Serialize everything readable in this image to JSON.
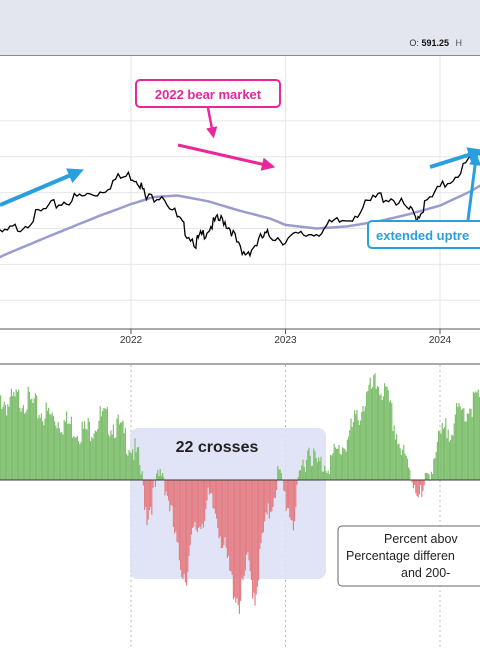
{
  "header": {
    "ohlc_prefix": "O:",
    "ohlc_open": "591.25",
    "ohlc_next": "H"
  },
  "annotations": {
    "bear_market": "2022 bear market",
    "extended_uptrend": "extended uptre",
    "crosses": "22 crosses",
    "note_lines": [
      "Percent abov",
      "Percentage differen",
      "and 200-"
    ]
  },
  "colors": {
    "price_line": "#000000",
    "moving_average": "#9a9cd0",
    "positive_histogram": "#7fbf6e",
    "negative_histogram": "#e47f86",
    "crosses_box": "#dcdff5",
    "bear_annotation": "#e8279b",
    "uptrend_annotation": "#2a9fe0"
  },
  "chart_data": [
    {
      "type": "line",
      "panel": "price",
      "x_ticks": [
        "2022",
        "2023",
        "2024"
      ],
      "x_range": [
        2020.9,
        2024.7
      ],
      "grid": true,
      "series": [
        {
          "role": "price",
          "x": [
            2020.9,
            2021.0,
            2021.1,
            2021.2,
            2021.3,
            2021.4,
            2021.5,
            2021.6,
            2021.7,
            2021.8,
            2021.9,
            2022.0,
            2022.05,
            2022.1,
            2022.2,
            2022.3,
            2022.35,
            2022.42,
            2022.45,
            2022.5,
            2022.55,
            2022.6,
            2022.65,
            2022.72,
            2022.78,
            2022.85,
            2022.9,
            2023.0,
            2023.1,
            2023.2,
            2023.3,
            2023.4,
            2023.5,
            2023.6,
            2023.7,
            2023.8,
            2023.85,
            2023.9,
            2024.0,
            2024.1,
            2024.2,
            2024.3,
            2024.4,
            2024.5,
            2024.6,
            2024.7
          ],
          "y": [
            362,
            370,
            385,
            395,
            405,
            420,
            432,
            440,
            445,
            452,
            468,
            474,
            468,
            440,
            450,
            415,
            398,
            380,
            388,
            400,
            410,
            412,
            398,
            362,
            372,
            387,
            392,
            384,
            390,
            395,
            405,
            413,
            428,
            445,
            442,
            425,
            415,
            432,
            455,
            475,
            495,
            512,
            520,
            535,
            550,
            560
          ]
        },
        {
          "role": "200-day moving average",
          "x": [
            2020.9,
            2021.2,
            2021.5,
            2021.8,
            2022.0,
            2022.15,
            2022.3,
            2022.5,
            2022.7,
            2022.9,
            2023.0,
            2023.2,
            2023.4,
            2023.6,
            2023.8,
            2024.0,
            2024.2,
            2024.4,
            2024.6,
            2024.7
          ],
          "y": [
            335,
            365,
            392,
            418,
            434,
            444,
            446,
            438,
            425,
            414,
            405,
            400,
            403,
            410,
            420,
            432,
            452,
            478,
            505,
            515
          ]
        }
      ]
    },
    {
      "type": "bar",
      "panel": "indicator",
      "baseline": 0,
      "ylim": [
        -12,
        8
      ],
      "x": [
        2020.9,
        2021.0,
        2021.1,
        2021.2,
        2021.3,
        2021.4,
        2021.5,
        2021.6,
        2021.7,
        2021.8,
        2021.9,
        2021.95,
        2022.0,
        2022.05,
        2022.08,
        2022.1,
        2022.15,
        2022.2,
        2022.25,
        2022.3,
        2022.35,
        2022.4,
        2022.45,
        2022.5,
        2022.55,
        2022.6,
        2022.65,
        2022.7,
        2022.75,
        2022.8,
        2022.85,
        2022.9,
        2022.95,
        2023.0,
        2023.05,
        2023.1,
        2023.15,
        2023.2,
        2023.3,
        2023.4,
        2023.5,
        2023.55,
        2023.6,
        2023.65,
        2023.7,
        2023.75,
        2023.8,
        2023.85,
        2023.88,
        2023.92,
        2024.0,
        2024.1,
        2024.2,
        2024.3,
        2024.4,
        2024.5,
        2024.6,
        2024.7
      ],
      "values": [
        6,
        7,
        6.5,
        5.5,
        6,
        5,
        4.5,
        4,
        3.5,
        4.5,
        4,
        3.2,
        2.5,
        1.2,
        -1,
        -2.5,
        -0.8,
        0.8,
        -2,
        -5.5,
        -7,
        -4,
        -3,
        -1.5,
        -2.5,
        -5,
        -7.5,
        -9,
        -6,
        -8.5,
        -4,
        -2,
        0.5,
        -1.5,
        -3,
        0.8,
        2.5,
        1,
        1.5,
        3,
        5.5,
        6.5,
        7,
        6,
        4,
        2,
        0.5,
        -0.5,
        -1.5,
        0.5,
        3,
        4.5,
        5.5,
        6.5,
        7,
        6.5,
        6,
        5.5
      ]
    }
  ]
}
